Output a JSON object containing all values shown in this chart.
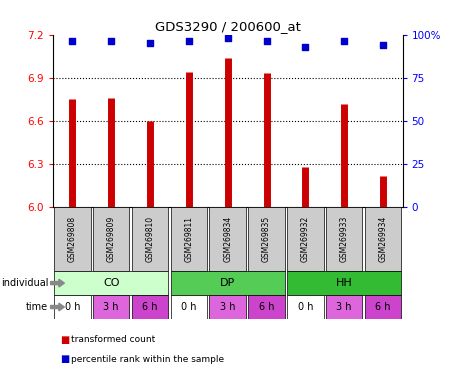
{
  "title": "GDS3290 / 200600_at",
  "samples": [
    "GSM269808",
    "GSM269809",
    "GSM269810",
    "GSM269811",
    "GSM269834",
    "GSM269835",
    "GSM269932",
    "GSM269933",
    "GSM269934"
  ],
  "red_values": [
    6.75,
    6.76,
    6.6,
    6.94,
    7.04,
    6.93,
    6.28,
    6.72,
    6.22
  ],
  "blue_values": [
    96,
    96,
    95,
    96,
    98,
    96,
    93,
    96,
    94
  ],
  "ylim_left": [
    6.0,
    7.2
  ],
  "ylim_right": [
    0,
    100
  ],
  "yticks_left": [
    6.0,
    6.3,
    6.6,
    6.9,
    7.2
  ],
  "yticks_right": [
    0,
    25,
    50,
    75,
    100
  ],
  "groups": [
    {
      "label": "CO",
      "start": 0,
      "end": 3,
      "color": "#ccffcc"
    },
    {
      "label": "DP",
      "start": 3,
      "end": 6,
      "color": "#55cc55"
    },
    {
      "label": "HH",
      "start": 6,
      "end": 9,
      "color": "#33bb33"
    }
  ],
  "times": [
    "0 h",
    "3 h",
    "6 h",
    "0 h",
    "3 h",
    "6 h",
    "0 h",
    "3 h",
    "6 h"
  ],
  "time_colors": [
    "#ffffff",
    "#dd66dd",
    "#cc44cc",
    "#ffffff",
    "#dd66dd",
    "#cc44cc",
    "#ffffff",
    "#dd66dd",
    "#cc44cc"
  ],
  "bar_color": "#cc0000",
  "dot_color": "#0000cc",
  "background_color": "#ffffff",
  "legend_red": "transformed count",
  "legend_blue": "percentile rank within the sample",
  "sample_box_color": "#cccccc"
}
